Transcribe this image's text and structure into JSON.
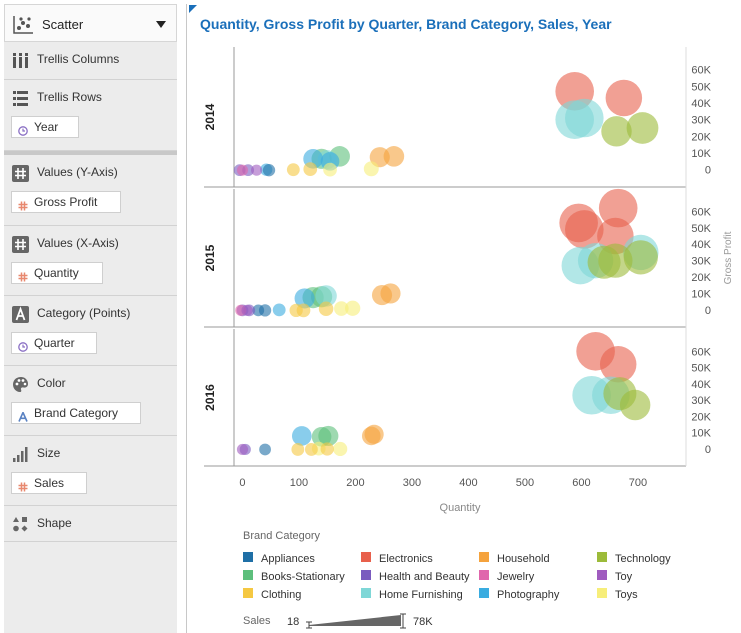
{
  "panel": {
    "chart_type": "Scatter",
    "sections": [
      {
        "label": "Trellis Columns",
        "icon": "columns-icon",
        "pill": null
      },
      {
        "label": "Trellis Rows",
        "icon": "rows-icon",
        "pill": {
          "label": "Year",
          "icon": "clock-icon"
        }
      },
      {
        "label": "Values (Y-Axis)",
        "icon": "hash-icon",
        "pill": {
          "label": "Gross Profit",
          "icon": "hash-icon"
        }
      },
      {
        "label": "Values (X-Axis)",
        "icon": "hash-icon",
        "pill": {
          "label": "Quantity",
          "icon": "hash-icon"
        }
      },
      {
        "label": "Category (Points)",
        "icon": "text-a-icon",
        "pill": {
          "label": "Quarter",
          "icon": "clock-icon"
        }
      },
      {
        "label": "Color",
        "icon": "palette-icon",
        "pill": {
          "label": "Brand Category",
          "icon": "text-a-icon"
        }
      },
      {
        "label": "Size",
        "icon": "bars-icon",
        "pill": {
          "label": "Sales",
          "icon": "hash-icon"
        }
      },
      {
        "label": "Shape",
        "icon": "shapes-icon",
        "pill": null
      }
    ]
  },
  "legend_colors": {
    "Appliances": "#1f6fa6",
    "Electronics": "#e8604c",
    "Household": "#f5a33d",
    "Technology": "#9cbb3a",
    "Books-Stationary": "#5dbf7c",
    "Health and Beauty": "#7a5bbf",
    "Jewelry": "#e066ac",
    "Toy": "#a05cbf",
    "Clothing": "#f5c842",
    "Home Furnishing": "#7fd7d7",
    "Photography": "#3aace0",
    "Toys": "#f7ee7a"
  },
  "chart_data": {
    "type": "scatter",
    "title": "Quantity, Gross Profit by Quarter, Brand Category, Sales, Year",
    "xlabel": "Quantity",
    "ylabel": "Gross Profit",
    "xlim": [
      -15,
      785
    ],
    "ylim": [
      -8000,
      70000
    ],
    "x_ticks": [
      "0",
      "100",
      "200",
      "300",
      "400",
      "500",
      "600",
      "700"
    ],
    "x_tick_values": [
      0,
      100,
      200,
      300,
      400,
      500,
      600,
      700
    ],
    "y_ticks": [
      "0",
      "10K",
      "20K",
      "30K",
      "40K",
      "50K",
      "60K"
    ],
    "y_tick_values": [
      0,
      10000,
      20000,
      30000,
      40000,
      50000,
      60000
    ],
    "legend_title": "Brand Category",
    "categories": [
      "Appliances",
      "Electronics",
      "Household",
      "Technology",
      "Books-Stationary",
      "Health and Beauty",
      "Jewelry",
      "Toy",
      "Clothing",
      "Home Furnishing",
      "Photography",
      "Toys"
    ],
    "size_legend": {
      "label": "Sales",
      "min": "18",
      "max": "78K"
    },
    "panels": [
      {
        "year": "2014",
        "points": [
          {
            "c": "Electronics",
            "x": 588,
            "y": 47000,
            "s": 16000
          },
          {
            "c": "Electronics",
            "x": 675,
            "y": 43000,
            "s": 14000
          },
          {
            "c": "Home Furnishing",
            "x": 588,
            "y": 30000,
            "s": 16000
          },
          {
            "c": "Home Furnishing",
            "x": 605,
            "y": 31000,
            "s": 16000
          },
          {
            "c": "Technology",
            "x": 662,
            "y": 23000,
            "s": 9000
          },
          {
            "c": "Technology",
            "x": 708,
            "y": 25000,
            "s": 10000
          },
          {
            "c": "Household",
            "x": 243,
            "y": 7500,
            "s": 3000
          },
          {
            "c": "Household",
            "x": 268,
            "y": 8000,
            "s": 3200
          },
          {
            "c": "Books-Stationary",
            "x": 172,
            "y": 8000,
            "s": 3200
          },
          {
            "c": "Books-Stationary",
            "x": 140,
            "y": 6500,
            "s": 3000
          },
          {
            "c": "Home Furnishing",
            "x": 150,
            "y": 6000,
            "s": 2600
          },
          {
            "c": "Photography",
            "x": 125,
            "y": 6500,
            "s": 2800
          },
          {
            "c": "Photography",
            "x": 155,
            "y": 5000,
            "s": 2400
          },
          {
            "c": "Toys",
            "x": 228,
            "y": 500,
            "s": 1200
          },
          {
            "c": "Toys",
            "x": 155,
            "y": 0,
            "s": 900
          },
          {
            "c": "Clothing",
            "x": 120,
            "y": 300,
            "s": 900
          },
          {
            "c": "Clothing",
            "x": 90,
            "y": 0,
            "s": 700
          },
          {
            "c": "Photography",
            "x": 42,
            "y": 0,
            "s": 600
          },
          {
            "c": "Appliances",
            "x": 47,
            "y": -300,
            "s": 600
          },
          {
            "c": "Health and Beauty",
            "x": -5,
            "y": -300,
            "s": 500
          },
          {
            "c": "Health and Beauty",
            "x": 10,
            "y": -300,
            "s": 500
          },
          {
            "c": "Jewelry",
            "x": 0,
            "y": -300,
            "s": 400
          },
          {
            "c": "Toy",
            "x": 25,
            "y": -300,
            "s": 400
          }
        ]
      },
      {
        "year": "2015",
        "points": [
          {
            "c": "Electronics",
            "x": 665,
            "y": 62000,
            "s": 16000
          },
          {
            "c": "Electronics",
            "x": 595,
            "y": 53000,
            "s": 16000
          },
          {
            "c": "Electronics",
            "x": 605,
            "y": 49000,
            "s": 16000
          },
          {
            "c": "Electronics",
            "x": 660,
            "y": 45000,
            "s": 14000
          },
          {
            "c": "Home Furnishing",
            "x": 705,
            "y": 35000,
            "s": 13000
          },
          {
            "c": "Home Furnishing",
            "x": 625,
            "y": 30000,
            "s": 13000
          },
          {
            "c": "Home Furnishing",
            "x": 598,
            "y": 27000,
            "s": 15000
          },
          {
            "c": "Technology",
            "x": 705,
            "y": 32000,
            "s": 12000
          },
          {
            "c": "Technology",
            "x": 660,
            "y": 30000,
            "s": 12000
          },
          {
            "c": "Technology",
            "x": 640,
            "y": 29000,
            "s": 11000
          },
          {
            "c": "Household",
            "x": 262,
            "y": 10000,
            "s": 3000
          },
          {
            "c": "Household",
            "x": 247,
            "y": 9000,
            "s": 3000
          },
          {
            "c": "Books-Stationary",
            "x": 140,
            "y": 8000,
            "s": 3500
          },
          {
            "c": "Books-Stationary",
            "x": 125,
            "y": 7500,
            "s": 3500
          },
          {
            "c": "Home Furnishing",
            "x": 148,
            "y": 8500,
            "s": 3600
          },
          {
            "c": "Photography",
            "x": 110,
            "y": 7000,
            "s": 3000
          },
          {
            "c": "Toys",
            "x": 195,
            "y": 1000,
            "s": 1300
          },
          {
            "c": "Toys",
            "x": 175,
            "y": 800,
            "s": 1100
          },
          {
            "c": "Clothing",
            "x": 148,
            "y": 700,
            "s": 1100
          },
          {
            "c": "Clothing",
            "x": 108,
            "y": -300,
            "s": 900
          },
          {
            "c": "Clothing",
            "x": 95,
            "y": -300,
            "s": 800
          },
          {
            "c": "Photography",
            "x": 65,
            "y": 0,
            "s": 700
          },
          {
            "c": "Appliances",
            "x": 40,
            "y": -300,
            "s": 600
          },
          {
            "c": "Appliances",
            "x": 28,
            "y": -300,
            "s": 500
          },
          {
            "c": "Health and Beauty",
            "x": 0,
            "y": -300,
            "s": 500
          },
          {
            "c": "Health and Beauty",
            "x": 12,
            "y": -300,
            "s": 500
          },
          {
            "c": "Jewelry",
            "x": -3,
            "y": -300,
            "s": 400
          },
          {
            "c": "Toy",
            "x": 8,
            "y": -300,
            "s": 400
          }
        ]
      },
      {
        "year": "2016",
        "points": [
          {
            "c": "Electronics",
            "x": 625,
            "y": 60000,
            "s": 16000
          },
          {
            "c": "Electronics",
            "x": 665,
            "y": 52000,
            "s": 14000
          },
          {
            "c": "Home Furnishing",
            "x": 618,
            "y": 33000,
            "s": 16000
          },
          {
            "c": "Home Furnishing",
            "x": 652,
            "y": 33000,
            "s": 15000
          },
          {
            "c": "Technology",
            "x": 668,
            "y": 34000,
            "s": 11000
          },
          {
            "c": "Technology",
            "x": 695,
            "y": 27000,
            "s": 9000
          },
          {
            "c": "Household",
            "x": 233,
            "y": 9000,
            "s": 2600
          },
          {
            "c": "Household",
            "x": 228,
            "y": 8000,
            "s": 2400
          },
          {
            "c": "Books-Stationary",
            "x": 152,
            "y": 8000,
            "s": 3000
          },
          {
            "c": "Books-Stationary",
            "x": 140,
            "y": 7500,
            "s": 2800
          },
          {
            "c": "Photography",
            "x": 105,
            "y": 8000,
            "s": 2800
          },
          {
            "c": "Toys",
            "x": 173,
            "y": 0,
            "s": 1000
          },
          {
            "c": "Toys",
            "x": 135,
            "y": 200,
            "s": 900
          },
          {
            "c": "Clothing",
            "x": 150,
            "y": 0,
            "s": 800
          },
          {
            "c": "Clothing",
            "x": 98,
            "y": -300,
            "s": 700
          },
          {
            "c": "Clothing",
            "x": 122,
            "y": -300,
            "s": 700
          },
          {
            "c": "Appliances",
            "x": 40,
            "y": -300,
            "s": 500
          },
          {
            "c": "Health and Beauty",
            "x": 5,
            "y": -300,
            "s": 400
          },
          {
            "c": "Toy",
            "x": 0,
            "y": -300,
            "s": 400
          }
        ]
      }
    ]
  }
}
